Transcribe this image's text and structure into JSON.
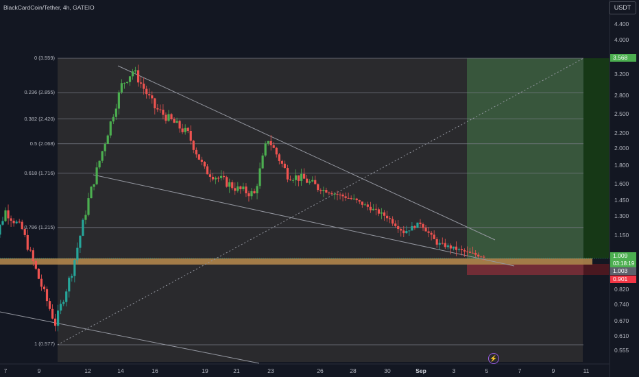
{
  "header": {
    "symbol_title": "BlackCardCoin/Tether, 4h, GATEIO",
    "currency_button": "USDT"
  },
  "price_axis": {
    "ticks": [
      "4.400",
      "4.000",
      "3.200",
      "2.800",
      "2.500",
      "2.200",
      "2.000",
      "1.800",
      "1.600",
      "1.450",
      "1.300",
      "1.150",
      "0.820",
      "0.740",
      "0.670",
      "0.610",
      "0.555"
    ]
  },
  "time_axis": {
    "ticks": [
      "7",
      "9",
      "12",
      "14",
      "16",
      "19",
      "21",
      "23",
      "26",
      "28",
      "30",
      "Sep",
      "3",
      "5",
      "7",
      "9",
      "11"
    ]
  },
  "fibonacci": {
    "levels": [
      "0 (3.559)",
      "0.236 (2.855)",
      "0.382 (2.420)",
      "0.5 (2.068)",
      "0.618 (1.716)",
      "0.786 (1.215)",
      "1 (0.577)"
    ]
  },
  "price_tags": {
    "target": "3.568",
    "last_price": "1.009",
    "countdown": "03:18:19",
    "reference": "1.003",
    "stop": "0.901"
  },
  "colors": {
    "background": "#131722",
    "fib_zone": "#2a2a2d",
    "up_candle": "#26a69a",
    "up_candle_bright": "#4caf50",
    "down_candle": "#ef5350",
    "profit_zone": "#3b5e3f",
    "loss_zone": "#7a2d37",
    "support_band": "#b98b4e"
  },
  "chart_data": {
    "type": "candlestick",
    "title": "BlackCardCoin/Tether, 4h, GATEIO",
    "y_scale": "log",
    "ylim": [
      0.52,
      4.6
    ],
    "x_range_days": [
      "Aug 6",
      "Sep 12"
    ],
    "close_path": [
      {
        "x": "Aug 6",
        "close": 1.01
      },
      {
        "x": "Aug 7",
        "close": 1.35
      },
      {
        "x": "Aug 8",
        "close": 1.2
      },
      {
        "x": "Aug 9",
        "close": 0.88
      },
      {
        "x": "Aug 10",
        "close": 0.66
      },
      {
        "x": "Aug 11",
        "close": 0.92
      },
      {
        "x": "Aug 12",
        "close": 1.45
      },
      {
        "x": "Aug 13",
        "close": 2.1
      },
      {
        "x": "Aug 14",
        "close": 3.0
      },
      {
        "x": "Aug 14.7",
        "close": 3.3
      },
      {
        "x": "Aug 16",
        "close": 2.6
      },
      {
        "x": "Aug 18",
        "close": 2.2
      },
      {
        "x": "Aug 19",
        "close": 1.75
      },
      {
        "x": "Aug 21",
        "close": 1.55
      },
      {
        "x": "Aug 22",
        "close": 1.5
      },
      {
        "x": "Aug 22.8",
        "close": 2.15
      },
      {
        "x": "Aug 24",
        "close": 1.7
      },
      {
        "x": "Aug 25",
        "close": 1.65
      },
      {
        "x": "Aug 26",
        "close": 1.55
      },
      {
        "x": "Aug 28",
        "close": 1.45
      },
      {
        "x": "Aug 30",
        "close": 1.3
      },
      {
        "x": "Aug 31",
        "close": 1.18
      },
      {
        "x": "Sep 1",
        "close": 1.25
      },
      {
        "x": "Sep 2",
        "close": 1.1
      },
      {
        "x": "Sep 4",
        "close": 1.03
      },
      {
        "x": "Sep 5",
        "close": 1.009
      }
    ],
    "fib_levels": [
      {
        "level": 0,
        "price": 3.559
      },
      {
        "level": 0.236,
        "price": 2.855
      },
      {
        "level": 0.382,
        "price": 2.42
      },
      {
        "level": 0.5,
        "price": 2.068
      },
      {
        "level": 0.618,
        "price": 1.716
      },
      {
        "level": 0.786,
        "price": 1.215
      },
      {
        "level": 1,
        "price": 0.577
      }
    ],
    "position": {
      "entry": 1.003,
      "target": 3.568,
      "stop": 0.901
    },
    "last_price": 1.009
  }
}
